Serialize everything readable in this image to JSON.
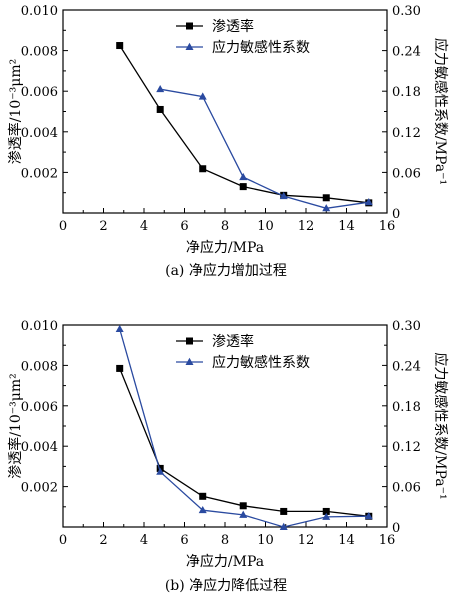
{
  "chart_data": [
    {
      "type": "line",
      "caption": "(a)  净应力增加过程",
      "xlabel": "净应力/MPa",
      "ylabel": "渗透率/10⁻³μm²",
      "y2label": "应力敏感性系数/MPa⁻¹",
      "xlim": [
        0,
        16
      ],
      "ylim": [
        0,
        0.01
      ],
      "y2lim": [
        0,
        0.3
      ],
      "xticks": [
        "0",
        "2",
        "4",
        "6",
        "8",
        "10",
        "12",
        "14",
        "16"
      ],
      "yticks": [
        "0.010",
        "0.008",
        "0.006",
        "0.004",
        "0.002"
      ],
      "y2ticks": [
        "0.30",
        "0.24",
        "0.18",
        "0.12",
        "0.06",
        "0"
      ],
      "legend_position": "top-center",
      "series": [
        {
          "name": "渗透率",
          "axis": "left",
          "color": "#000000",
          "marker": "square",
          "x": [
            2.8,
            4.8,
            6.9,
            8.9,
            10.9,
            13.0,
            15.1
          ],
          "y": [
            0.00825,
            0.0051,
            0.00218,
            0.0013,
            0.00087,
            0.00075,
            0.0005
          ]
        },
        {
          "name": "应力敏感性系数",
          "axis": "right",
          "color": "#2a4aa0",
          "marker": "triangle",
          "x": [
            4.8,
            6.9,
            8.9,
            10.9,
            13.0,
            15.1
          ],
          "y": [
            0.183,
            0.172,
            0.053,
            0.025,
            0.007,
            0.016
          ]
        }
      ]
    },
    {
      "type": "line",
      "caption": "(b)  净应力降低过程",
      "xlabel": "净应力/MPa",
      "ylabel": "渗透率/10⁻³μm²",
      "y2label": "应力敏感性系数/MPa⁻¹",
      "xlim": [
        0,
        16
      ],
      "ylim": [
        0,
        0.01
      ],
      "y2lim": [
        0,
        0.3
      ],
      "xticks": [
        "0",
        "2",
        "4",
        "6",
        "8",
        "10",
        "12",
        "14",
        "16"
      ],
      "yticks": [
        "0.010",
        "0.008",
        "0.006",
        "0.004",
        "0.002"
      ],
      "y2ticks": [
        "0.30",
        "0.24",
        "0.18",
        "0.12",
        "0.06",
        "0"
      ],
      "legend_position": "top-center",
      "series": [
        {
          "name": "渗透率",
          "axis": "left",
          "color": "#000000",
          "marker": "square",
          "x": [
            2.8,
            4.8,
            6.9,
            8.9,
            10.9,
            13.0,
            15.1
          ],
          "y": [
            0.00785,
            0.0029,
            0.00152,
            0.00105,
            0.00077,
            0.00077,
            0.00053
          ]
        },
        {
          "name": "应力敏感性系数",
          "axis": "right",
          "color": "#2a4aa0",
          "marker": "triangle",
          "x": [
            2.8,
            4.8,
            6.9,
            8.9,
            10.9,
            13.0,
            15.1
          ],
          "y": [
            0.294,
            0.082,
            0.025,
            0.018,
            0.0,
            0.015,
            0.016
          ]
        }
      ]
    }
  ]
}
